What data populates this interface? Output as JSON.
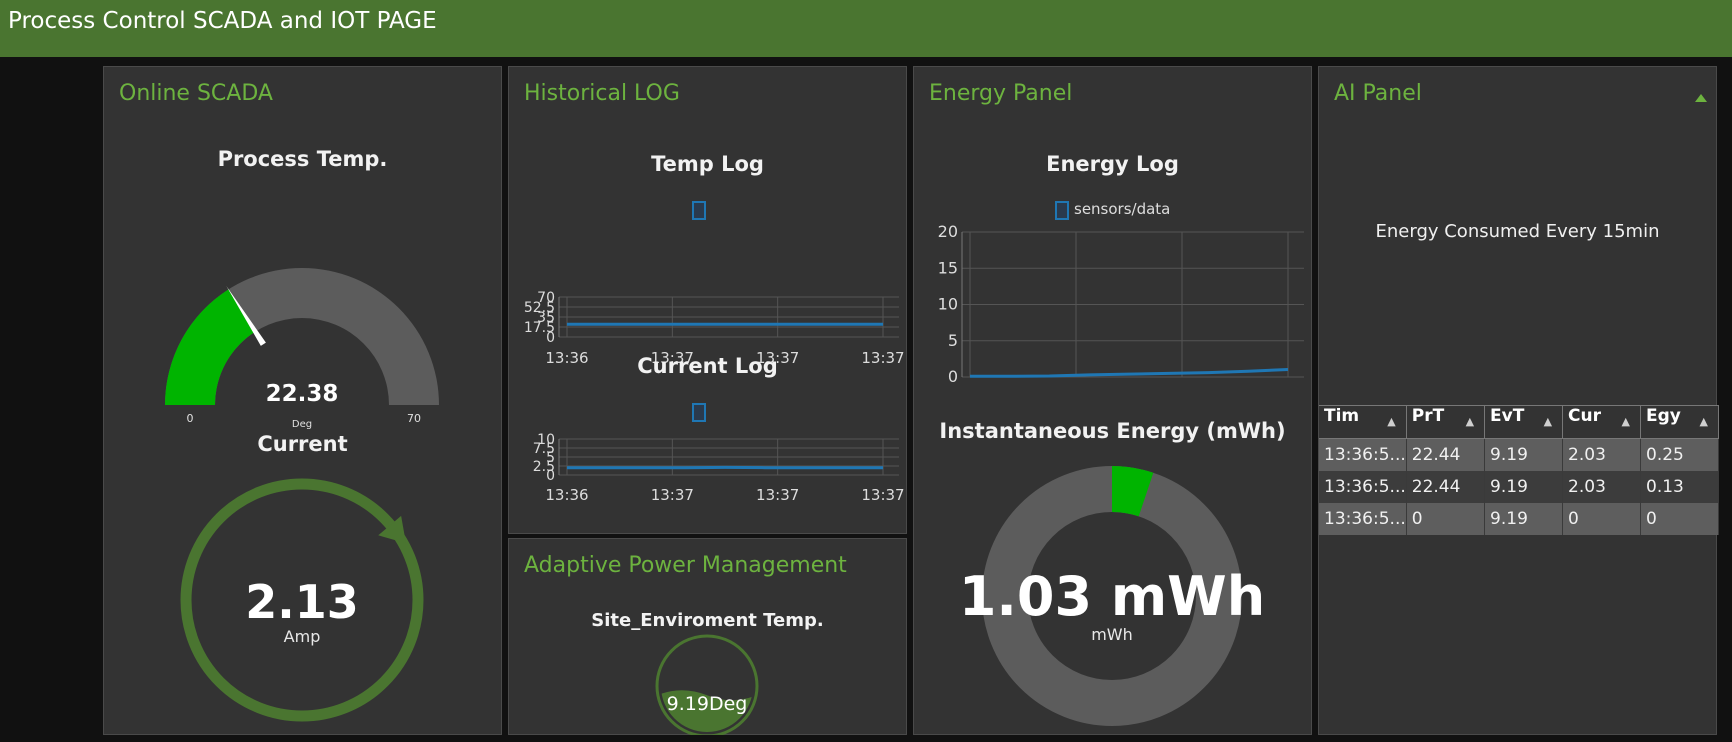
{
  "header": {
    "title": "Process Control SCADA and IOT PAGE"
  },
  "colors": {
    "header_bg": "#4a7530",
    "panel_bg": "#333333",
    "accent": "#6db33f",
    "gauge_fill": "#00b400",
    "series": "#1f77b4"
  },
  "scada": {
    "title": "Online SCADA",
    "temp_gauge": {
      "label": "Process Temp.",
      "value": "22.38",
      "unit": "Deg",
      "min": "0",
      "max": "70",
      "fraction": 0.3197
    },
    "current_gauge": {
      "label": "Current",
      "value": "2.13",
      "unit": "Amp",
      "fraction": 0.138
    }
  },
  "historical": {
    "title": "Historical LOG",
    "temp_chart": {
      "title": "Temp Log",
      "y_ticks": [
        "0",
        "17.5",
        "35",
        "52.5",
        "70"
      ],
      "x_ticks": [
        "13:36",
        "13:37",
        "13:37",
        "13:37"
      ],
      "ylim": [
        0,
        70
      ],
      "values": [
        22.4,
        22.4,
        22.4,
        22.4,
        22.4,
        22.4,
        22.4,
        22.4,
        22.4
      ]
    },
    "current_chart": {
      "title": "Current Log",
      "y_ticks": [
        "0",
        "2.5",
        "5",
        "7.5",
        "10"
      ],
      "x_ticks": [
        "13:36",
        "13:37",
        "13:37",
        "13:37"
      ],
      "ylim": [
        0,
        10
      ],
      "values": [
        2.03,
        2.03,
        2.03,
        2.03,
        2.13,
        2.03,
        2.03,
        2.03,
        2.03
      ]
    }
  },
  "adaptive": {
    "title": "Adaptive Power Management",
    "tank": {
      "label": "Site_Enviroment Temp.",
      "value_text": "9.19Deg",
      "level": 0.4
    }
  },
  "energy": {
    "title": "Energy Panel",
    "chart": {
      "title": "Energy Log",
      "legend": "sensors/data",
      "y_ticks": [
        "0",
        "5",
        "10",
        "15",
        "20"
      ],
      "x_ticks": [
        "13:36",
        "13:37",
        "13:37",
        "13:37"
      ],
      "ylim": [
        0,
        20
      ],
      "values": [
        0.1,
        0.1,
        0.13,
        0.3,
        0.4,
        0.5,
        0.6,
        0.8,
        1.03
      ]
    },
    "donut": {
      "title": "Instantaneous Energy (mWh)",
      "value": "1.03 mWh",
      "unit": "mWh",
      "fraction": 0.0515
    }
  },
  "ai": {
    "title": "AI Panel",
    "subtitle": "Energy Consumed Every 15min",
    "columns": [
      "Tim",
      "PrT",
      "EvT",
      "Cur",
      "Egy"
    ],
    "rows": [
      [
        "13:36:5...",
        "22.44",
        "9.19",
        "2.03",
        "0.25"
      ],
      [
        "13:36:5...",
        "22.44",
        "9.19",
        "2.03",
        "0.13"
      ],
      [
        "13:36:5...",
        "0",
        "9.19",
        "0",
        "0"
      ]
    ]
  }
}
